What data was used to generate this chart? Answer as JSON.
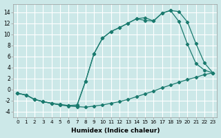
{
  "xlabel": "Humidex (Indice chaleur)",
  "bg_color": "#cce8e8",
  "grid_color": "#ffffff",
  "line_color": "#1a7a6e",
  "xlim": [
    -0.5,
    23.5
  ],
  "ylim": [
    -5,
    15.5
  ],
  "xticks": [
    0,
    1,
    2,
    3,
    4,
    5,
    6,
    7,
    8,
    9,
    10,
    11,
    12,
    13,
    14,
    15,
    16,
    17,
    18,
    19,
    20,
    21,
    22,
    23
  ],
  "yticks": [
    -4,
    -2,
    0,
    2,
    4,
    6,
    8,
    10,
    12,
    14
  ],
  "curve_bottom_x": [
    0,
    1,
    2,
    3,
    4,
    5,
    6,
    7,
    8,
    9,
    10,
    11,
    12,
    13,
    14,
    15,
    16,
    17,
    18,
    19,
    20,
    21,
    22,
    23
  ],
  "curve_bottom_y": [
    -0.7,
    -1.0,
    -1.8,
    -2.2,
    -2.5,
    -2.8,
    -3.0,
    -3.1,
    -3.2,
    -3.0,
    -2.8,
    -2.5,
    -2.2,
    -1.8,
    -1.3,
    -0.8,
    -0.3,
    0.3,
    0.8,
    1.3,
    1.8,
    2.2,
    2.7,
    3.0
  ],
  "curve_top1_x": [
    0,
    1,
    2,
    3,
    4,
    5,
    6,
    7,
    8,
    9,
    10,
    11,
    12,
    13,
    14,
    15,
    16,
    17,
    18,
    19,
    20,
    21,
    22,
    23
  ],
  "curve_top1_y": [
    -0.7,
    -1.0,
    -1.8,
    -2.2,
    -2.5,
    -2.8,
    -2.9,
    -2.9,
    1.5,
    6.5,
    9.3,
    10.5,
    11.2,
    12.0,
    12.8,
    13.0,
    12.4,
    13.8,
    14.3,
    14.1,
    12.2,
    8.3,
    4.8,
    3.0
  ],
  "curve_top2_x": [
    0,
    1,
    2,
    3,
    4,
    5,
    6,
    7,
    8,
    9,
    10,
    11,
    12,
    13,
    14,
    15,
    16,
    17,
    18,
    19,
    20,
    21,
    22,
    23
  ],
  "curve_top2_y": [
    -0.7,
    -1.0,
    -1.8,
    -2.2,
    -2.5,
    -2.7,
    -2.9,
    -2.8,
    1.5,
    6.5,
    9.3,
    10.5,
    11.2,
    12.0,
    12.8,
    12.5,
    12.4,
    13.8,
    14.3,
    12.3,
    8.2,
    4.7,
    3.5,
    3.0
  ]
}
